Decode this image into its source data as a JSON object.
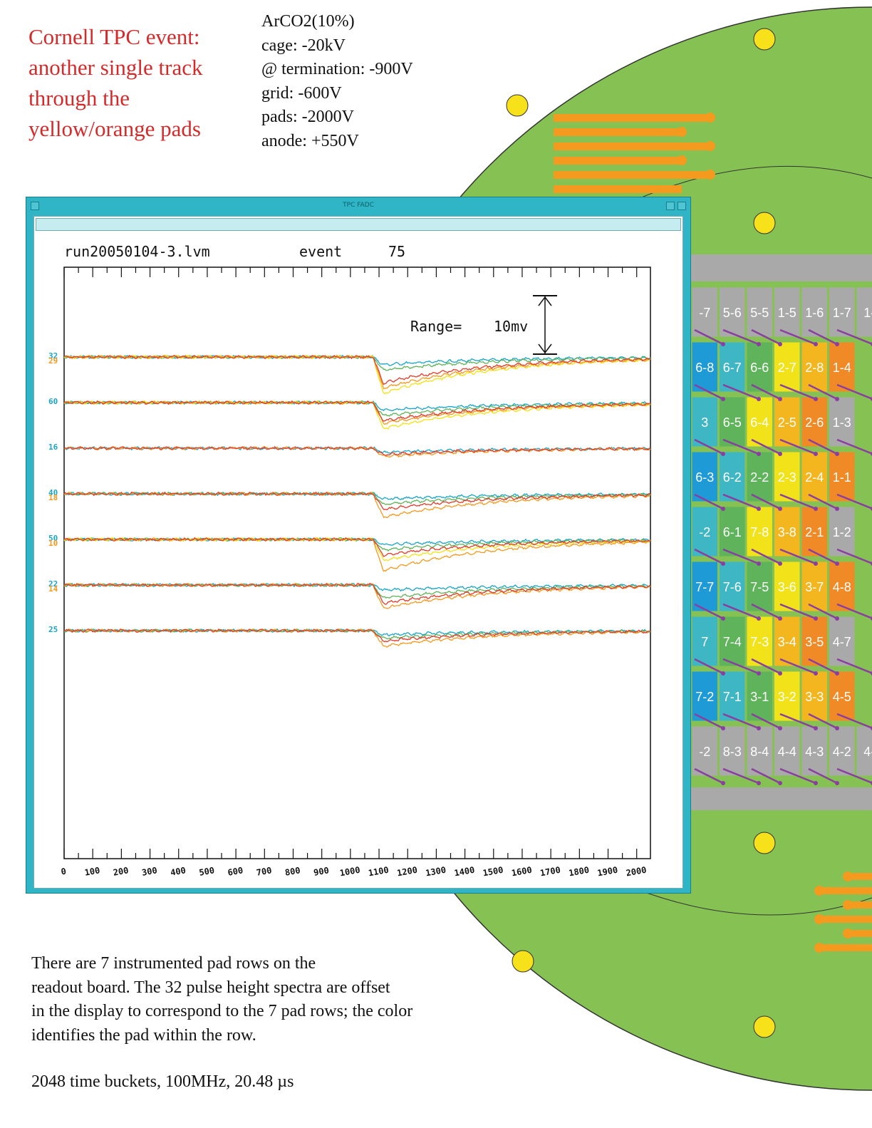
{
  "slide": {
    "title_lines": [
      "Cornell TPC event:",
      "another single track",
      "through the",
      "yellow/orange pads"
    ],
    "conditions": [
      "ArCO2(10%)",
      "cage: -20kV",
      "@ termination: -900V",
      "grid: -600V",
      "pads: -2000V",
      "anode: +550V"
    ],
    "description_lines": [
      "There are 7 instrumented pad rows on the",
      "readout board. The 32 pulse height spectra are offset",
      "in the display to correspond to the 7 pad rows; the color",
      "identifies the pad within the row."
    ],
    "footnote": "2048 time buckets, 100MHz, 20.48 µs"
  },
  "window": {
    "title": "TPC FADC"
  },
  "scope": {
    "file": "run20050104-3.lvm",
    "event_label": "event",
    "event_number": "75",
    "range_label": "Range=",
    "range_value": "10mv"
  },
  "pads": {
    "row_labels": [
      [
        "-7",
        "5-6",
        "5-5",
        "1-5",
        "1-6",
        "1-7",
        "1-"
      ],
      [
        "6-8",
        "6-7",
        "6-6",
        "2-7",
        "2-8",
        "1-4"
      ],
      [
        "3",
        "6-5",
        "6-4",
        "2-5",
        "2-6",
        "1-3"
      ],
      [
        "6-3",
        "6-2",
        "2-2",
        "2-3",
        "2-4",
        "1-1"
      ],
      [
        "-2",
        "6-1",
        "7-8",
        "3-8",
        "2-1",
        "1-2"
      ],
      [
        "7-7",
        "7-6",
        "7-5",
        "3-6",
        "3-7",
        "4-8"
      ],
      [
        "7",
        "7-4",
        "7-3",
        "3-4",
        "3-5",
        "4-7"
      ],
      [
        "7-2",
        "7-1",
        "3-1",
        "3-2",
        "3-3",
        "4-5"
      ],
      [
        "-2",
        "8-3",
        "8-4",
        "4-4",
        "4-3",
        "4-2",
        "4-"
      ]
    ]
  },
  "chart_data": {
    "type": "line",
    "title": "run20050104-3.lvm event 75",
    "xlabel": "",
    "ylabel": "",
    "xlim": [
      0,
      2048
    ],
    "xticks": [
      0,
      100,
      200,
      300,
      400,
      500,
      600,
      700,
      800,
      900,
      1000,
      1100,
      1200,
      1300,
      1400,
      1500,
      1600,
      1700,
      1800,
      1900,
      2000
    ],
    "x_units": "time bucket",
    "y_units": "mV",
    "range_bar_mv": 10,
    "pulse_start_bucket": 1080,
    "colors": {
      "cyan": "#1aa5c8",
      "green": "#5fb35a",
      "yellow": "#f2e21a",
      "orange": "#f39a1f",
      "red": "#e23b2b",
      "blue": "#2a7fd4"
    },
    "groups": [
      {
        "channel_labels": [
          "32",
          "29"
        ],
        "baseline": 0,
        "amplitudes_mv": [
          {
            "color": "cyan",
            "min": -1.5
          },
          {
            "color": "green",
            "min": -2.5
          },
          {
            "color": "red",
            "min": -5
          },
          {
            "color": "orange",
            "min": -6
          },
          {
            "color": "yellow",
            "min": -7
          }
        ]
      },
      {
        "channel_labels": [
          "60"
        ],
        "baseline": -8,
        "amplitudes_mv": [
          {
            "color": "cyan",
            "min": -1.5
          },
          {
            "color": "green",
            "min": -2.5
          },
          {
            "color": "red",
            "min": -3.5
          },
          {
            "color": "orange",
            "min": -4
          },
          {
            "color": "yellow",
            "min": -5
          }
        ]
      },
      {
        "channel_labels": [
          "16"
        ],
        "baseline": -16,
        "amplitudes_mv": [
          {
            "color": "cyan",
            "min": -0.8
          },
          {
            "color": "red",
            "min": -1.2
          },
          {
            "color": "orange",
            "min": -1.6
          }
        ]
      },
      {
        "channel_labels": [
          "40",
          "18"
        ],
        "baseline": -24,
        "amplitudes_mv": [
          {
            "color": "cyan",
            "min": -1
          },
          {
            "color": "green",
            "min": -2
          },
          {
            "color": "red",
            "min": -3
          },
          {
            "color": "orange",
            "min": -4.5
          }
        ]
      },
      {
        "channel_labels": [
          "50",
          "10"
        ],
        "baseline": -32,
        "amplitudes_mv": [
          {
            "color": "cyan",
            "min": -1
          },
          {
            "color": "green",
            "min": -2
          },
          {
            "color": "red",
            "min": -3
          },
          {
            "color": "yellow",
            "min": -4
          },
          {
            "color": "orange",
            "min": -6
          }
        ]
      },
      {
        "channel_labels": [
          "22",
          "14"
        ],
        "baseline": -40,
        "amplitudes_mv": [
          {
            "color": "cyan",
            "min": -1
          },
          {
            "color": "green",
            "min": -2.5
          },
          {
            "color": "red",
            "min": -3.5
          },
          {
            "color": "orange",
            "min": -4.5
          }
        ]
      },
      {
        "channel_labels": [
          "25"
        ],
        "baseline": -48,
        "amplitudes_mv": [
          {
            "color": "cyan",
            "min": -0.8
          },
          {
            "color": "green",
            "min": -1.5
          },
          {
            "color": "red",
            "min": -2
          },
          {
            "color": "orange",
            "min": -3
          }
        ]
      }
    ]
  }
}
